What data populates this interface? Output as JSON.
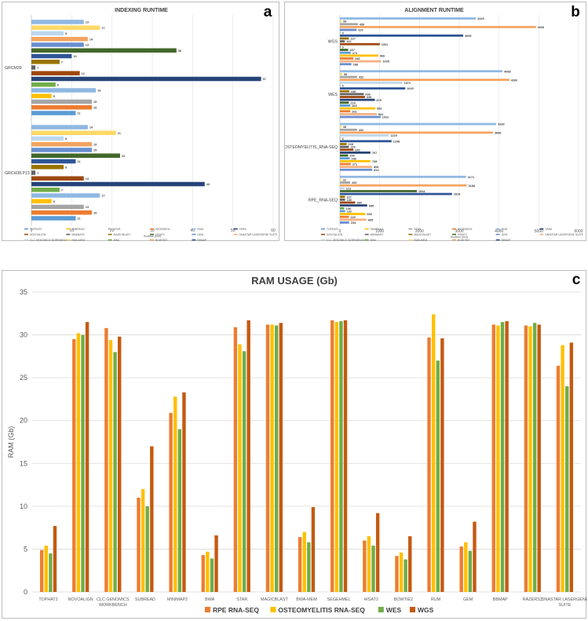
{
  "palette": {
    "TOPHAT2": "#5B9BD5",
    "SUBREAD": "#FFC000",
    "STAR": "#A5A5A5",
    "SEGEMEHL": "#ED7D31",
    "RUM": "#8FB8E2",
    "YARA": "#264478",
    "NOVOALIGN": "#9E480E",
    "MINIMAP2": "#636363",
    "MAGICBLAST": "#997300",
    "HISAT2": "#43682B",
    "GEM": "#698ED0",
    "DNASTAR LASERGENE SUITE": "#F4B183",
    "CLC GENOMICS WORKBENCH": "#BDD7EE",
    "BWA-MEM": "#FFD966",
    "BWA": "#70AD47",
    "BOWTIE2": "#F4A460",
    "BBMAP": "#2E5597"
  },
  "chart_data": [
    {
      "id": "a",
      "type": "bar",
      "orientation": "horizontal",
      "title": "INDEXING RUNTIME",
      "letter": "a",
      "xlabel": "Runtime (min)",
      "xlim": [
        0,
        60
      ],
      "xticks": [
        0,
        10,
        20,
        30,
        40,
        50,
        60
      ],
      "legend_position": "bottom",
      "legend": [
        "TOPHAT2",
        "SUBREAD",
        "STAR",
        "SEGEMEHL",
        "RUM",
        "YARA",
        "NOVOALIGN",
        "MINIMAP2",
        "MAGICBLAST",
        "HISAT2",
        "GEM",
        "DNASTAR LASERGENE SUITE",
        "CLC GENOMICS WORKBENCH",
        "BWA-MEM",
        "BWA",
        "BOWTIE2",
        "BBMAP"
      ],
      "groups": [
        {
          "label": "GRCM39",
          "bars": [
            {
              "tool": "RUM",
              "value": 13
            },
            {
              "tool": "BWA-MEM",
              "value": 17
            },
            {
              "tool": "CLC GENOMICS WORKBENCH",
              "value": 8
            },
            {
              "tool": "BOWTIE2",
              "value": 14
            },
            {
              "tool": "GEM",
              "value": 13
            },
            {
              "tool": "HISAT2",
              "value": 36
            },
            {
              "tool": "BBMAP",
              "value": 10
            },
            {
              "tool": "MAGICBLAST",
              "value": 7
            },
            {
              "tool": "MINIMAP2",
              "value": 1
            },
            {
              "tool": "NOVOALIGN",
              "value": 12
            },
            {
              "tool": "YARA",
              "value": 57
            },
            {
              "tool": "BWA",
              "value": 6
            },
            {
              "tool": "RUM",
              "value": 16
            },
            {
              "tool": "SUBREAD",
              "value": 5
            },
            {
              "tool": "STAR",
              "value": 15
            },
            {
              "tool": "SEGEMEHL",
              "value": 15
            },
            {
              "tool": "TOPHAT2",
              "value": 11
            }
          ]
        },
        {
          "label": "GRCH38.P13",
          "bars": [
            {
              "tool": "RUM",
              "value": 14
            },
            {
              "tool": "BWA-MEM",
              "value": 21
            },
            {
              "tool": "CLC GENOMICS WORKBENCH",
              "value": 8
            },
            {
              "tool": "BOWTIE2",
              "value": 15
            },
            {
              "tool": "GEM",
              "value": 15
            },
            {
              "tool": "HISAT2",
              "value": 22
            },
            {
              "tool": "BBMAP",
              "value": 11
            },
            {
              "tool": "MAGICBLAST",
              "value": 8
            },
            {
              "tool": "MINIMAP2",
              "value": 1
            },
            {
              "tool": "NOVOALIGN",
              "value": 13
            },
            {
              "tool": "YARA",
              "value": 43
            },
            {
              "tool": "BWA",
              "value": 7
            },
            {
              "tool": "RUM",
              "value": 17
            },
            {
              "tool": "SUBREAD",
              "value": 5
            },
            {
              "tool": "STAR",
              "value": 13
            },
            {
              "tool": "SEGEMEHL",
              "value": 15
            },
            {
              "tool": "TOPHAT2",
              "value": 11
            }
          ]
        }
      ]
    },
    {
      "id": "b",
      "type": "bar",
      "orientation": "horizontal",
      "title": "ALIGNMENT RUNTIME",
      "letter": "b",
      "xlabel": "Runtime (min)",
      "xlim": [
        0,
        6000
      ],
      "xticks": [
        0,
        1000,
        2000,
        3000,
        4000,
        5000,
        6000
      ],
      "legend_position": "bottom",
      "legend": [
        "TOPHAT2",
        "SUBREAD",
        "STAR",
        "SEGEMEHL",
        "RUM",
        "YARA",
        "NOVOALIGN",
        "MINIMAP2",
        "MAGICBLAST",
        "HISAT2",
        "GEM",
        "DNASTAR LASERGENE SUITE",
        "CLC GENOMICS WORKBENCH",
        "BWA",
        "BWA-MEM",
        "BOWTIE2",
        "BBMAP"
      ],
      "groups": [
        {
          "label": "WGS",
          "bars": [
            {
              "tool": "RUM",
              "value": 3420
            },
            {
              "tool": "BWA-MEM",
              "value": 39
            },
            {
              "tool": "STAR",
              "value": 450
            },
            {
              "tool": "BOWTIE2",
              "value": 4928
            },
            {
              "tool": "GEM",
              "value": 420
            },
            {
              "tool": "BWA",
              "value": 0
            },
            {
              "tool": "BBMAP",
              "value": 3099
            },
            {
              "tool": "MAGICBLAST",
              "value": 227
            },
            {
              "tool": "MINIMAP2",
              "value": 122
            },
            {
              "tool": "NOVOALIGN",
              "value": 1001
            },
            {
              "tool": "YARA",
              "value": 0
            },
            {
              "tool": "HISAT2",
              "value": 207
            },
            {
              "tool": "TOPHAT2",
              "value": 272
            },
            {
              "tool": "SUBREAD",
              "value": 966
            },
            {
              "tool": "SEGEMEHL",
              "value": 340
            },
            {
              "tool": "DNASTAR LASERGENE SUITE",
              "value": 1035
            },
            {
              "tool": "GEM",
              "value": 288
            }
          ]
        },
        {
          "label": "WES",
          "bars": [
            {
              "tool": "RUM",
              "value": 4088
            },
            {
              "tool": "BWA-MEM",
              "value": 56
            },
            {
              "tool": "STAR",
              "value": 432
            },
            {
              "tool": "BOWTIE2",
              "value": 4260
            },
            {
              "tool": "CLC GENOMICS WORKBENCH",
              "value": 1572
            },
            {
              "tool": "BWA",
              "value": 0
            },
            {
              "tool": "BBMAP",
              "value": 1643
            },
            {
              "tool": "MAGICBLAST",
              "value": 236
            },
            {
              "tool": "MINIMAP2",
              "value": 600
            },
            {
              "tool": "NOVOALIGN",
              "value": 630
            },
            {
              "tool": "YARA",
              "value": 879
            },
            {
              "tool": "HISAT2",
              "value": 224
            },
            {
              "tool": "TOPHAT2",
              "value": 263
            },
            {
              "tool": "SUBREAD",
              "value": 892
            },
            {
              "tool": "SEGEMEHL",
              "value": 261
            },
            {
              "tool": "DNASTAR LASERGENE SUITE",
              "value": 924
            },
            {
              "tool": "GEM",
              "value": 1022
            }
          ]
        },
        {
          "label": "OSTEOMYELITIS_RNA-SEQ",
          "bars": [
            {
              "tool": "RUM",
              "value": 3930
            },
            {
              "tool": "BWA-MEM",
              "value": 38
            },
            {
              "tool": "STAR",
              "value": 432
            },
            {
              "tool": "BOWTIE2",
              "value": 3848
            },
            {
              "tool": "CLC GENOMICS WORKBENCH",
              "value": 1229
            },
            {
              "tool": "BWA",
              "value": 0
            },
            {
              "tool": "BBMAP",
              "value": 1298
            },
            {
              "tool": "MAGICBLAST",
              "value": 168
            },
            {
              "tool": "MINIMAP2",
              "value": 226
            },
            {
              "tool": "NOVOALIGN",
              "value": 340
            },
            {
              "tool": "YARA",
              "value": 767
            },
            {
              "tool": "HISAT2",
              "value": 206
            },
            {
              "tool": "TOPHAT2",
              "value": 246
            },
            {
              "tool": "SUBREAD",
              "value": 768
            },
            {
              "tool": "SEGEMEHL",
              "value": 271
            },
            {
              "tool": "DNASTAR LASERGENE SUITE",
              "value": 808
            },
            {
              "tool": "GEM",
              "value": 813
            }
          ]
        },
        {
          "label": "RPE_RNA-SEQ",
          "bars": [
            {
              "tool": "RUM",
              "value": 3171
            },
            {
              "tool": "BWA-MEM",
              "value": 32
            },
            {
              "tool": "STAR",
              "value": 260
            },
            {
              "tool": "BOWTIE2",
              "value": 3188
            },
            {
              "tool": "CLC GENOMICS WORKBENCH",
              "value": 113
            },
            {
              "tool": "HISAT2",
              "value": 1934
            },
            {
              "tool": "BBMAP",
              "value": 2818
            },
            {
              "tool": "MAGICBLAST",
              "value": 127
            },
            {
              "tool": "MINIMAP2",
              "value": 130
            },
            {
              "tool": "NOVOALIGN",
              "value": 384
            },
            {
              "tool": "YARA",
              "value": 685
            },
            {
              "tool": "BWA",
              "value": 108
            },
            {
              "tool": "TOPHAT2",
              "value": 132
            },
            {
              "tool": "SUBREAD",
              "value": 638
            },
            {
              "tool": "SEGEMEHL",
              "value": 225
            },
            {
              "tool": "DNASTAR LASERGENE SUITE",
              "value": 665
            },
            {
              "tool": "GEM",
              "value": 234
            }
          ]
        }
      ]
    },
    {
      "id": "c",
      "type": "bar",
      "orientation": "vertical",
      "title": "RAM USAGE (Gb)",
      "letter": "c",
      "ylabel": "RAM (Gb)",
      "xlabel": "",
      "ylim": [
        0,
        35
      ],
      "yticks": [
        0,
        5,
        10,
        15,
        20,
        25,
        30,
        35
      ],
      "grid": true,
      "legend_position": "bottom",
      "categories": [
        "TOPHAT2",
        "NOVOALIGN",
        "CLC GENOMICS WORKBENCH",
        "SUBREAD",
        "MINIMAP2",
        "BWA",
        "STAR",
        "MAGICBLAST",
        "BWA-MEM",
        "SEGEHMEL",
        "HISAT2",
        "BOWTIE2",
        "RUM",
        "GEM",
        "BBMAP",
        "RAZERS3",
        "DNASTAR LASERGENE SUITE"
      ],
      "series": [
        {
          "name": "RPE RNA-SEQ",
          "color": "#ED7D31",
          "values": [
            4.9,
            29.5,
            30.8,
            11.0,
            20.9,
            4.3,
            30.9,
            31.2,
            6.4,
            31.7,
            6.0,
            4.2,
            29.7,
            5.3,
            31.2,
            31.1,
            26.4
          ]
        },
        {
          "name": "OSTEOMYELITIS RNA-SEQ",
          "color": "#FFC000",
          "values": [
            5.4,
            30.2,
            29.4,
            12.0,
            22.8,
            4.7,
            28.9,
            31.2,
            7.0,
            31.5,
            6.5,
            4.6,
            32.4,
            5.8,
            31.1,
            31.0,
            28.8
          ]
        },
        {
          "name": "WES",
          "color": "#70AD47",
          "values": [
            4.5,
            30.0,
            28.0,
            10.0,
            19.0,
            3.9,
            28.1,
            31.1,
            5.8,
            31.6,
            5.4,
            3.8,
            27.0,
            4.8,
            31.5,
            31.4,
            24.0
          ]
        },
        {
          "name": "WGS",
          "color": "#C55A11",
          "values": [
            7.7,
            31.5,
            29.8,
            17.0,
            23.3,
            6.6,
            31.7,
            31.4,
            9.9,
            31.7,
            9.2,
            6.5,
            29.6,
            8.2,
            31.6,
            31.2,
            29.1
          ]
        }
      ]
    }
  ]
}
